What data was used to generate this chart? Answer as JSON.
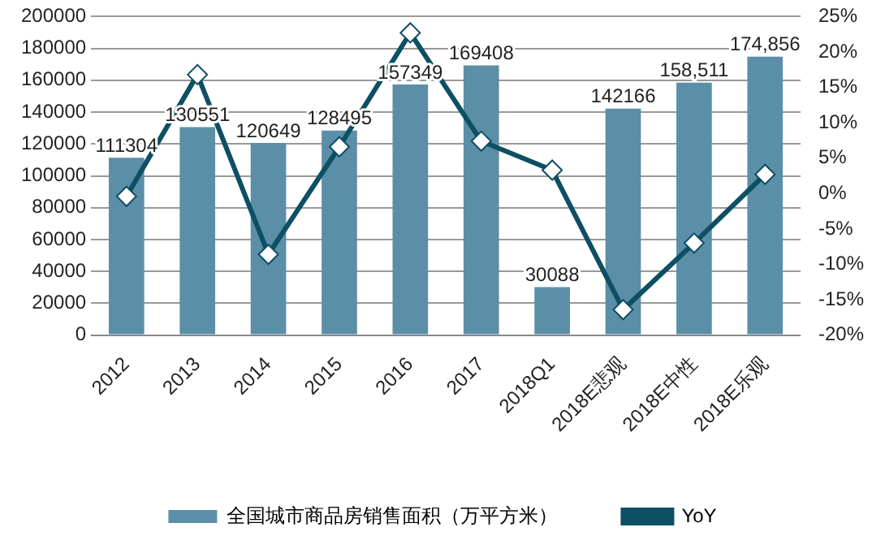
{
  "chart_data": {
    "type": "bar",
    "categories": [
      "2012",
      "2013",
      "2014",
      "2015",
      "2016",
      "2017",
      "2018Q1",
      "2018E悲观",
      "2018E中性",
      "2018E乐观"
    ],
    "series": [
      {
        "name": "全国城市商品房销售面积（万平方米）",
        "color": "#5b8fa8",
        "values": [
          111304,
          130551,
          120649,
          128495,
          157349,
          169408,
          30088,
          142166,
          158511,
          174856
        ],
        "value_labels": [
          "111304",
          "130551",
          "120649",
          "128495",
          "157349",
          "169408",
          "30088",
          "142166",
          "158,511",
          "174,856"
        ]
      },
      {
        "name": "YoY",
        "type": "line",
        "axis": "y2",
        "color": "#0d4f63",
        "marker": "diamond",
        "values": [
          -0.4,
          16.8,
          -8.6,
          6.6,
          22.7,
          7.4,
          3.3,
          -16.4,
          -7.0,
          2.7
        ]
      }
    ],
    "ylim": [
      0,
      200000
    ],
    "yticks": [
      0,
      20000,
      40000,
      60000,
      80000,
      100000,
      120000,
      140000,
      160000,
      180000,
      200000
    ],
    "y2lim": [
      -20,
      25
    ],
    "y2ticks": [
      {
        "value": -20,
        "label": "-20%"
      },
      {
        "value": -15,
        "label": "-15%"
      },
      {
        "value": -10,
        "label": "-10%"
      },
      {
        "value": -5,
        "label": "-5%"
      },
      {
        "value": 0,
        "label": "0%"
      },
      {
        "value": 5,
        "label": "5%"
      },
      {
        "value": 10,
        "label": "10%"
      },
      {
        "value": 15,
        "label": "15%"
      },
      {
        "value": 20,
        "label": "20%"
      },
      {
        "value": 25,
        "label": "25%"
      }
    ],
    "grid": "y",
    "legend": "bottom"
  }
}
